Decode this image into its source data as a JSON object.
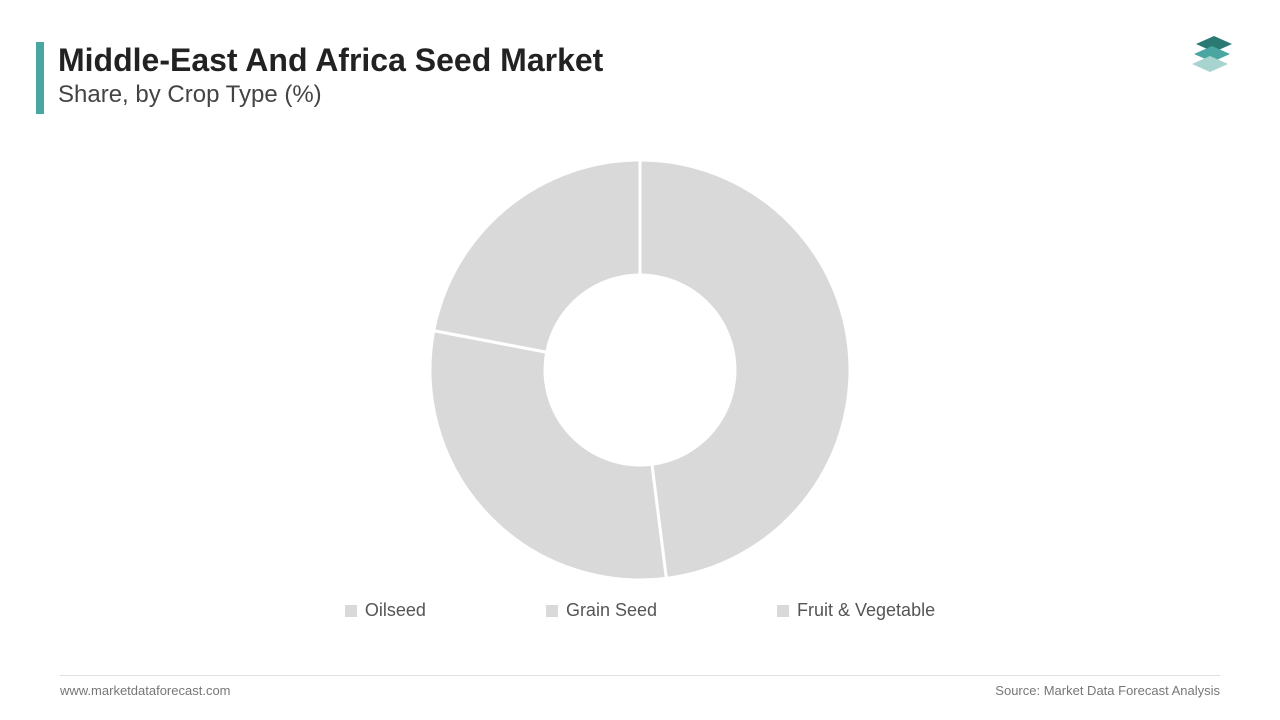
{
  "header": {
    "title": "Middle-East And Africa Seed Market",
    "subtitle": "Share, by Crop Type (%)",
    "accent_color": "#4aa6a0"
  },
  "logo": {
    "top_color": "#2a7a73",
    "mid_color": "#4aa6a0",
    "bot_color": "#a8d4cf"
  },
  "donut_chart": {
    "type": "donut",
    "outer_radius": 210,
    "inner_radius": 95,
    "slice_color": "#d9d9d9",
    "gap_color": "#ffffff",
    "gap_width": 3,
    "background_color": "#ffffff",
    "segments": [
      {
        "label": "Oilseed",
        "value": 48,
        "start_angle": 0,
        "end_angle": 172.8
      },
      {
        "label": "Grain Seed",
        "value": 30,
        "start_angle": 172.8,
        "end_angle": 280.8
      },
      {
        "label": "Fruit & Vegetable",
        "value": 22,
        "start_angle": 280.8,
        "end_angle": 360
      }
    ]
  },
  "legend": {
    "items": [
      {
        "marker_color": "#d9d9d9",
        "label": "Oilseed"
      },
      {
        "marker_color": "#d9d9d9",
        "label": "Grain Seed"
      },
      {
        "marker_color": "#d9d9d9",
        "label": "Fruit & Vegetable"
      }
    ],
    "fontsize": 18,
    "text_color": "#555555"
  },
  "footer": {
    "left": "www.marketdataforecast.com",
    "right": "Source: Market Data Forecast Analysis",
    "text_color": "#777777",
    "fontsize": 13
  }
}
